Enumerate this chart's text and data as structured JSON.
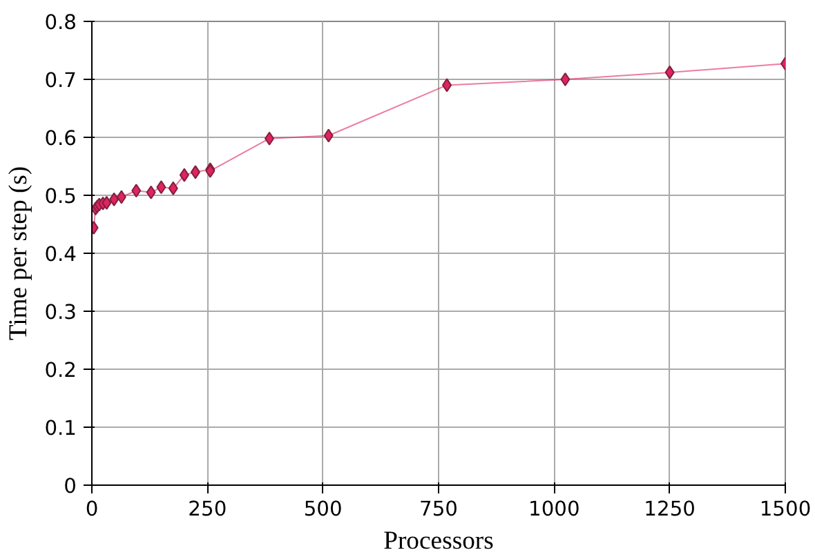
{
  "chart_data": {
    "type": "line",
    "xlabel": "Processors",
    "ylabel": "Time per step (s)",
    "x": [
      4,
      8,
      12,
      16,
      24,
      32,
      48,
      64,
      96,
      128,
      150,
      176,
      200,
      224,
      256,
      256,
      384,
      512,
      768,
      1024,
      1250,
      1500
    ],
    "series": [
      {
        "color": "#e0245e",
        "values": [
          0.444,
          0.477,
          0.481,
          0.484,
          0.486,
          0.487,
          0.493,
          0.497,
          0.508,
          0.505,
          0.514,
          0.512,
          0.535,
          0.54,
          0.545,
          0.542,
          0.598,
          0.603,
          0.69,
          0.7,
          0.712,
          0.727
        ]
      }
    ],
    "xlim": [
      0,
      1500
    ],
    "xticks": [
      0,
      250,
      500,
      750,
      1000,
      1250,
      1500
    ],
    "ylim": [
      0,
      0.8
    ],
    "yticks": [
      0,
      0.1,
      0.2,
      0.3,
      0.4,
      0.5,
      0.6,
      0.7,
      0.8
    ],
    "grid": true,
    "marker": "diamond",
    "line_style": "solid"
  }
}
